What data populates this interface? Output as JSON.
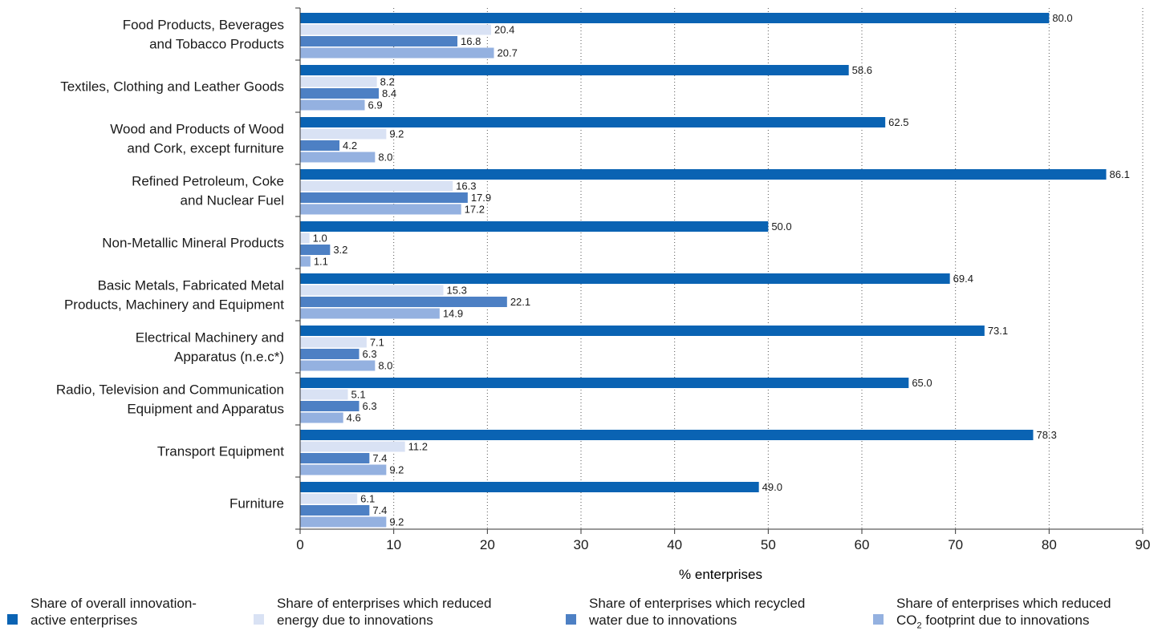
{
  "chart_data": {
    "type": "bar",
    "orientation": "horizontal",
    "categories": [
      "Food Products, Beverages\nand Tobacco Products",
      "Textiles, Clothing and Leather Goods",
      "Wood and Products of Wood\nand Cork, except furniture",
      "Refined Petroleum, Coke\nand Nuclear Fuel",
      "Non-Metallic Mineral Products",
      "Basic Metals, Fabricated Metal\nProducts, Machinery and Equipment",
      "Electrical Machinery and\nApparatus (n.e.c*)",
      "Radio, Television and Communication\nEquipment and Apparatus",
      "Transport Equipment",
      "Furniture"
    ],
    "series": [
      {
        "name": "Share of overall innovation-\nactive enterprises",
        "color": "#0a63b3",
        "values": [
          80.0,
          58.6,
          62.5,
          86.1,
          50.0,
          69.4,
          73.1,
          65.0,
          78.3,
          49.0
        ]
      },
      {
        "name": "Share of  enterprises which reduced\nenergy due to innovations",
        "color": "#d9e2f4",
        "values": [
          20.4,
          8.2,
          9.2,
          16.3,
          1.0,
          15.3,
          7.1,
          5.1,
          11.2,
          6.1
        ]
      },
      {
        "name": "Share of  enterprises which recycled\nwater due to innovations",
        "color": "#4d80c4",
        "values": [
          16.8,
          8.4,
          4.2,
          17.9,
          3.2,
          22.1,
          6.3,
          6.3,
          7.4,
          7.4
        ]
      },
      {
        "name": "Share of  enterprises which  reduced\nCO2 footprint due to innovations",
        "color": "#94b1e0",
        "values": [
          20.7,
          6.9,
          8.0,
          17.2,
          1.1,
          14.9,
          8.0,
          4.6,
          9.2,
          9.2
        ]
      }
    ],
    "xlabel": "% enterprises",
    "xlim": [
      0,
      90
    ],
    "xticks": [
      0,
      10,
      20,
      30,
      40,
      50,
      60,
      70,
      80,
      90
    ],
    "grid": "vertical dotted",
    "legend": "bottom"
  }
}
